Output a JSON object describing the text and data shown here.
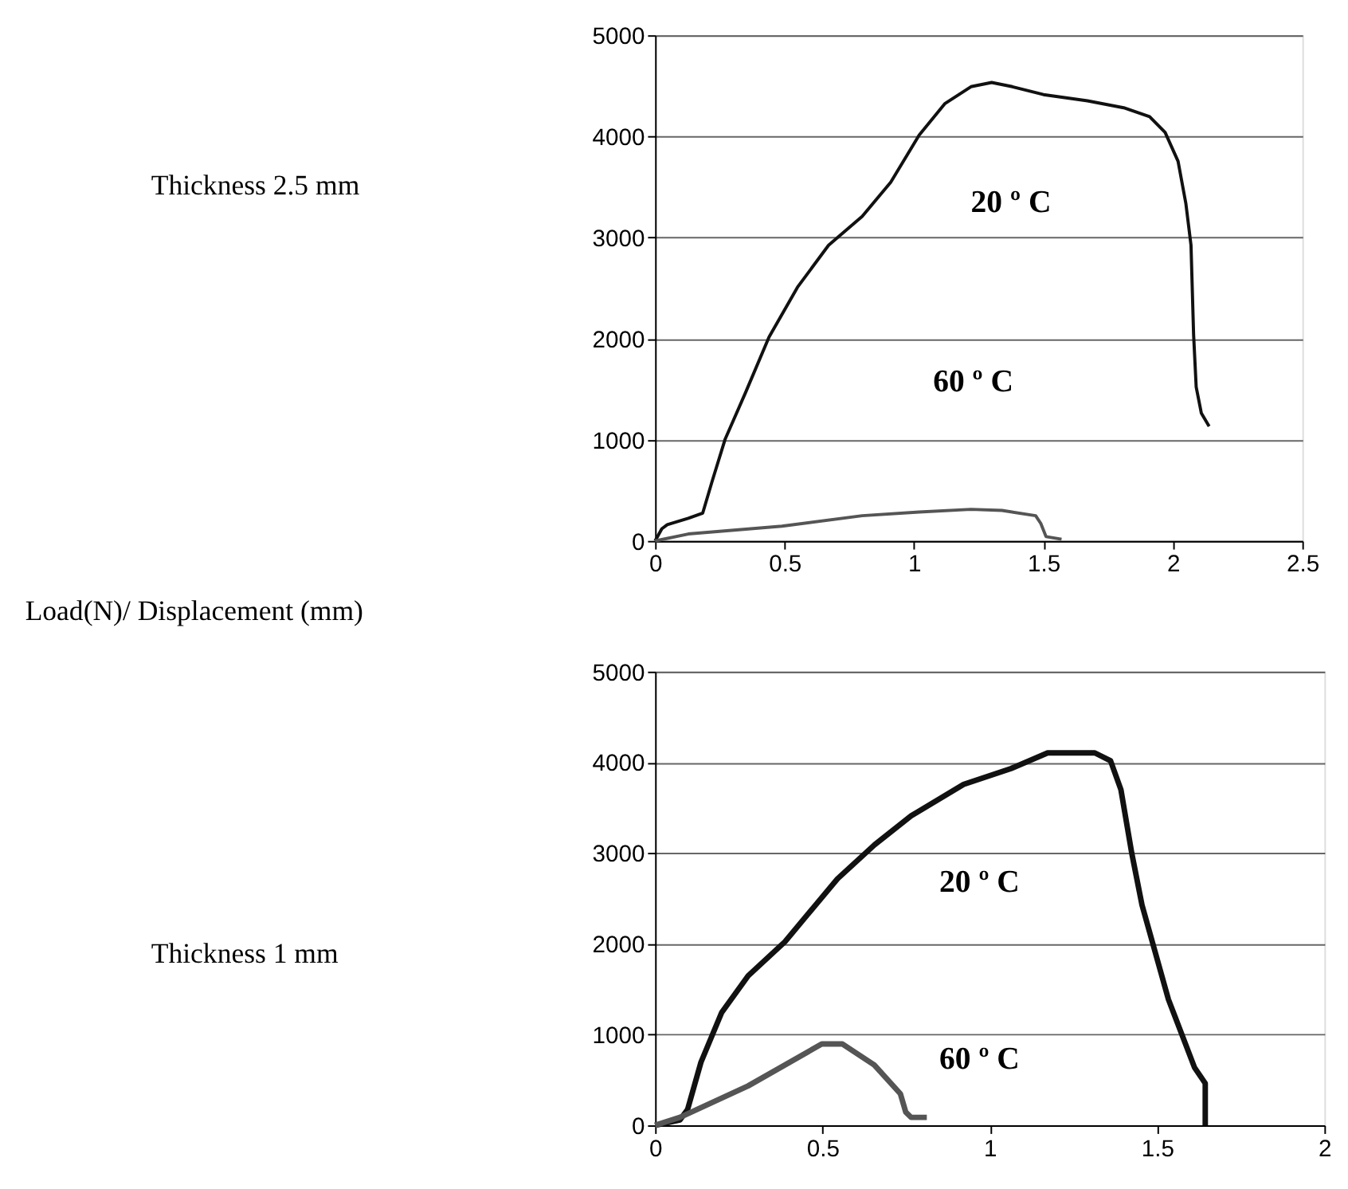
{
  "chart_data": [
    {
      "type": "line",
      "xlim": [
        0,
        2.5
      ],
      "xticks": [
        0,
        0.5,
        1,
        1.5,
        2,
        2.5
      ],
      "ylim": [
        0,
        5000
      ],
      "yticks": [
        0,
        1000,
        2000,
        3000,
        4000,
        5000
      ],
      "grid": "y",
      "annotations": [
        "Thickness 2.5 mm",
        "Load(N)/ Displacement (mm)",
        "20 º C",
        "60 º C"
      ],
      "series": [
        {
          "color": "#111111",
          "x": [
            0,
            0.026,
            0.047,
            0.128,
            0.184,
            0.22,
            0.27,
            0.35,
            0.44,
            0.55,
            0.67,
            0.8,
            0.91,
            1.02,
            1.12,
            1.22,
            1.3,
            1.38,
            1.5,
            1.67,
            1.81,
            1.91,
            1.97,
            2.02,
            2.05,
            2.07,
            2.08,
            2.09,
            2.11,
            2.14
          ],
          "values": [
            0,
            120,
            160,
            223,
            275,
            587,
            1002,
            1470,
            2015,
            2508,
            2923,
            3209,
            3546,
            4013,
            4325,
            4491,
            4533,
            4491,
            4413,
            4351,
            4283,
            4195,
            4039,
            3754,
            3338,
            2923,
            2040,
            1521,
            1262,
            1132
          ]
        },
        {
          "color": "#555555",
          "x": [
            0,
            0.128,
            0.49,
            0.8,
            1.02,
            1.22,
            1.34,
            1.47,
            1.49,
            1.51,
            1.57
          ],
          "values": [
            0,
            68,
            145,
            249,
            286,
            312,
            301,
            249,
            171,
            42,
            16
          ]
        }
      ]
    },
    {
      "type": "line",
      "xlim": [
        0,
        2
      ],
      "xticks": [
        0,
        0.5,
        1,
        1.5,
        2
      ],
      "ylim": [
        0,
        5000
      ],
      "yticks": [
        0,
        1000,
        2000,
        3000,
        4000,
        5000
      ],
      "grid": "y",
      "annotations": [
        "Thickness 1 mm",
        "20 º C",
        "60 º C"
      ],
      "series": [
        {
          "color": "#111111",
          "x": [
            0,
            0.074,
            0.097,
            0.137,
            0.199,
            0.278,
            0.388,
            0.545,
            0.656,
            0.765,
            0.922,
            1.063,
            1.173,
            1.314,
            1.361,
            1.392,
            1.424,
            1.455,
            1.534,
            1.612,
            1.644,
            1.644
          ],
          "values": [
            0,
            58,
            173,
            694,
            1243,
            1647,
            2023,
            2717,
            3092,
            3410,
            3757,
            3931,
            4104,
            4104,
            4017,
            3699,
            3006,
            2428,
            1387,
            636,
            462,
            0
          ]
        },
        {
          "color": "#555555",
          "x": [
            0,
            0.074,
            0.278,
            0.498,
            0.56,
            0.655,
            0.733,
            0.749,
            0.765,
            0.812
          ],
          "values": [
            0,
            87,
            434,
            896,
            896,
            665,
            347,
            145,
            87,
            87
          ]
        }
      ]
    }
  ]
}
